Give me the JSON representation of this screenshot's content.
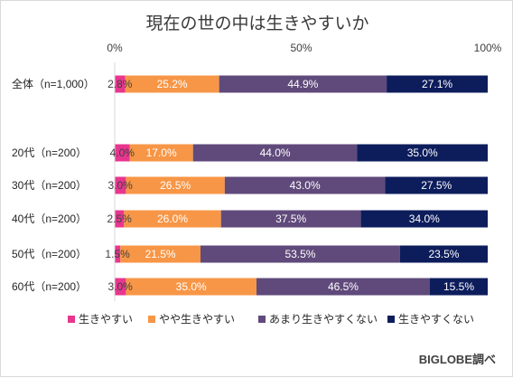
{
  "chart_data": {
    "type": "bar",
    "orientation": "horizontal",
    "stacked": true,
    "percent": true,
    "title": "現在の世の中は生きやすいか",
    "x_ticks": [
      "0%",
      "50%",
      "100%"
    ],
    "xlim": [
      0,
      100
    ],
    "categories": [
      "全体（n=1,000）",
      "20代（n=200）",
      "30代（n=200）",
      "40代（n=200）",
      "50代（n=200）",
      "60代（n=200）"
    ],
    "series": [
      {
        "name": "生きやすい",
        "color": "#e8368f",
        "values": [
          2.8,
          4.0,
          3.0,
          2.5,
          1.5,
          3.0
        ],
        "labels": [
          "2.8%",
          "4.0%",
          "3.0%",
          "2.5%",
          "1.5%",
          "3.0%"
        ]
      },
      {
        "name": "やや生きやすい",
        "color": "#f79646",
        "values": [
          25.2,
          17.0,
          26.5,
          26.0,
          21.5,
          35.0
        ],
        "labels": [
          "25.2%",
          "17.0%",
          "26.5%",
          "26.0%",
          "21.5%",
          "35.0%"
        ]
      },
      {
        "name": "あまり生きやすくない",
        "color": "#604a7b",
        "values": [
          44.9,
          44.0,
          43.0,
          37.5,
          53.5,
          46.5
        ],
        "labels": [
          "44.9%",
          "44.0%",
          "43.0%",
          "37.5%",
          "53.5%",
          "46.5%"
        ]
      },
      {
        "name": "生きやすくない",
        "color": "#0d1d5c",
        "values": [
          27.1,
          35.0,
          27.5,
          34.0,
          23.5,
          15.5
        ],
        "labels": [
          "27.1%",
          "35.0%",
          "27.5%",
          "34.0%",
          "23.5%",
          "15.5%"
        ]
      }
    ],
    "legend_position": "bottom",
    "grid": false
  },
  "credit": "BIGLOBE調べ"
}
